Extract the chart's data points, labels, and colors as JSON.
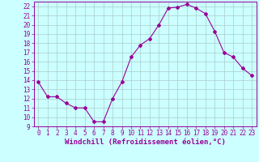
{
  "x": [
    0,
    1,
    2,
    3,
    4,
    5,
    6,
    7,
    8,
    9,
    10,
    11,
    12,
    13,
    14,
    15,
    16,
    17,
    18,
    19,
    20,
    21,
    22,
    23
  ],
  "y": [
    13.8,
    12.2,
    12.2,
    11.5,
    11.0,
    11.0,
    9.5,
    9.5,
    12.0,
    13.8,
    16.5,
    17.8,
    18.5,
    20.0,
    21.8,
    21.9,
    22.2,
    21.8,
    21.2,
    19.3,
    17.0,
    16.5,
    15.3,
    14.5
  ],
  "line_color": "#990099",
  "marker": "D",
  "marker_size": 2,
  "bg_color": "#ccffff",
  "grid_color": "#aacccc",
  "xlabel": "Windchill (Refroidissement éolien,°C)",
  "xlabel_color": "#990099",
  "tick_color": "#990099",
  "ylim": [
    9,
    22.5
  ],
  "xlim": [
    -0.5,
    23.5
  ],
  "yticks": [
    9,
    10,
    11,
    12,
    13,
    14,
    15,
    16,
    17,
    18,
    19,
    20,
    21,
    22
  ],
  "xticks": [
    0,
    1,
    2,
    3,
    4,
    5,
    6,
    7,
    8,
    9,
    10,
    11,
    12,
    13,
    14,
    15,
    16,
    17,
    18,
    19,
    20,
    21,
    22,
    23
  ],
  "label_fontsize": 6.5,
  "tick_fontsize": 5.5
}
